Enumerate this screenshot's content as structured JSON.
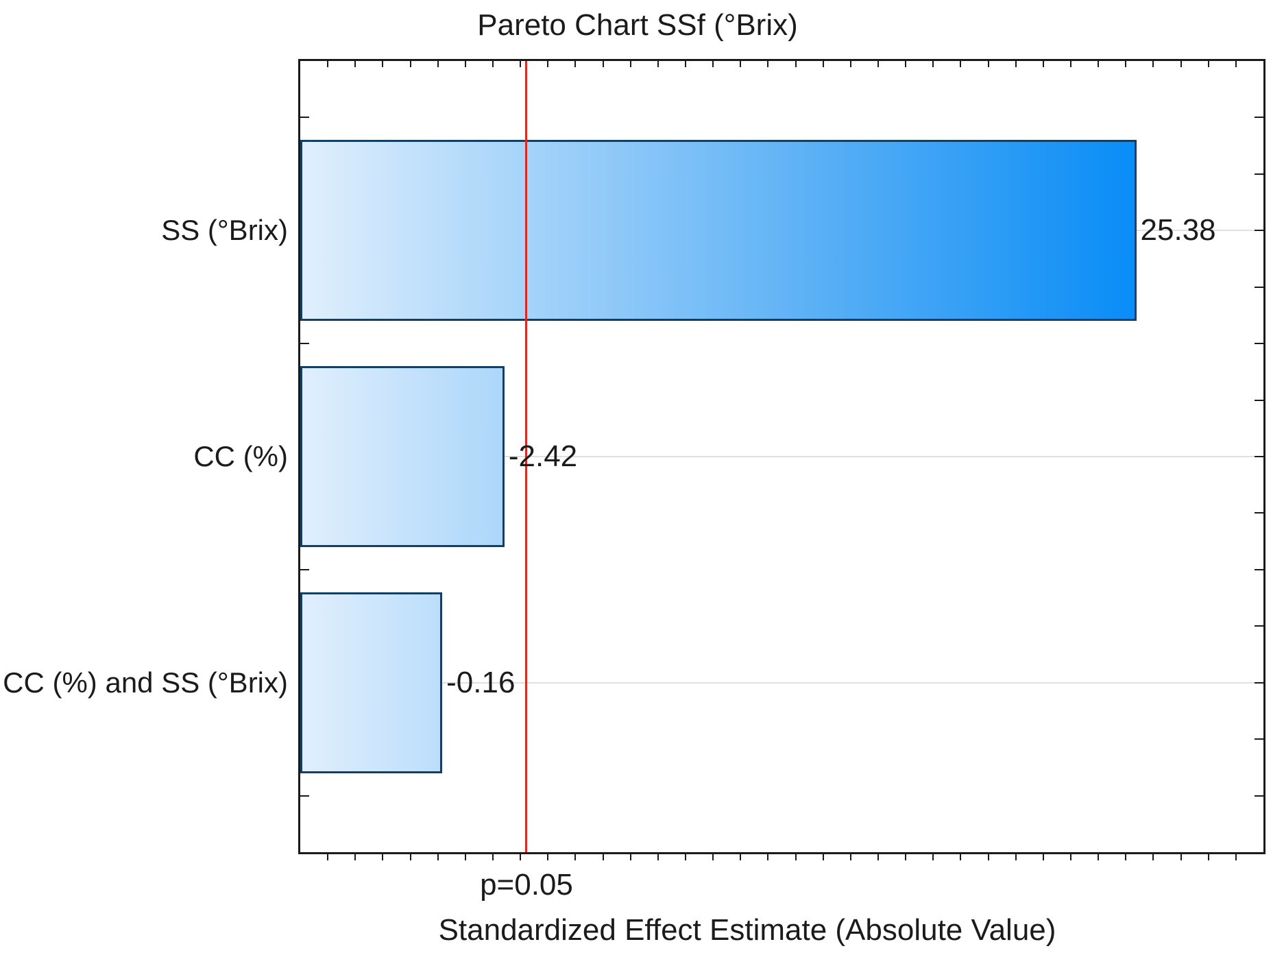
{
  "chart_data": {
    "type": "bar",
    "orientation": "horizontal",
    "title": "Pareto Chart SSf (°Brix)",
    "xlabel": "Standardized Effect Estimate (Absolute Value)",
    "categories": [
      "SS (°Brix)",
      "CC (%)",
      "CC (%) and SS (°Brix)"
    ],
    "series": [
      {
        "name": "Standardized effect estimate",
        "values": [
          25.38,
          -2.42,
          -0.16
        ]
      }
    ],
    "value_labels": [
      "25.38",
      "-2.42",
      "-0.16"
    ],
    "significance_line": {
      "label": "p=0.05",
      "x_value": 3.22
    },
    "xlim": [
      -5,
      30
    ],
    "x_tick_step": 1,
    "legend_position": "none",
    "grid": "horizontal-category-gridlines",
    "colors": {
      "bar_gradient_start": "#e0effd",
      "bar_gradient_mid": "#56aef5",
      "bar_gradient_end": "#0089f7",
      "bar_border": "#123f63",
      "significance_line": "#dd2a20",
      "gridline": "#e0e0e0",
      "axis": "#1a1a1a",
      "text": "#1b1b1b",
      "background": "#ffffff"
    }
  }
}
